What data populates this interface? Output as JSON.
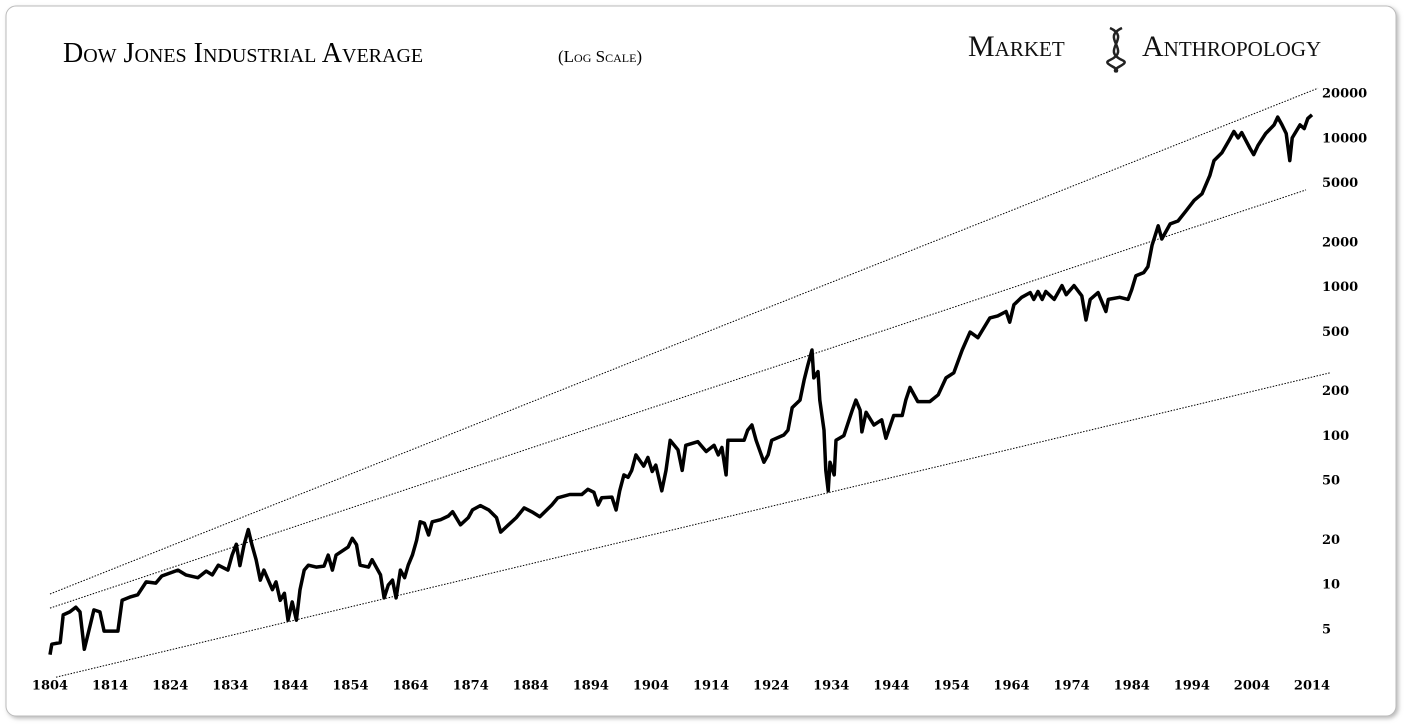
{
  "chart_data": {
    "type": "line",
    "title": "Dow Jones Industrial Average",
    "subtitle": "(Log Scale)",
    "brand": [
      "Market",
      "Anthropology"
    ],
    "log_scale": true,
    "color": "#000000",
    "xlim": [
      1804,
      2014
    ],
    "ylim": [
      2,
      25000
    ],
    "xticks": [
      1804,
      1814,
      1824,
      1834,
      1844,
      1854,
      1864,
      1874,
      1884,
      1894,
      1904,
      1914,
      1924,
      1934,
      1944,
      1954,
      1964,
      1974,
      1984,
      1994,
      2004,
      2014
    ],
    "yticks": [
      5,
      10,
      20,
      50,
      100,
      200,
      500,
      1000,
      2000,
      5000,
      10000,
      20000
    ],
    "x": [
      1804,
      1804.3,
      1805.7,
      1806.2,
      1807.3,
      1808.3,
      1809,
      1809.7,
      1810.7,
      1811.3,
      1812.3,
      1813,
      1815.3,
      1816,
      1817.3,
      1818.6,
      1820,
      1821.6,
      1822.6,
      1825.3,
      1826.6,
      1828.6,
      1830,
      1831,
      1832,
      1833.6,
      1834.3,
      1835,
      1835.6,
      1836.3,
      1837,
      1837.6,
      1838.3,
      1839,
      1839.6,
      1841,
      1841.6,
      1842.3,
      1843,
      1843.6,
      1844.3,
      1845,
      1845.6,
      1846.3,
      1847,
      1848.3,
      1849.6,
      1850.3,
      1851,
      1851.6,
      1853.6,
      1854.3,
      1855,
      1855.6,
      1857,
      1857.6,
      1859,
      1859.6,
      1860.3,
      1861,
      1861.6,
      1862.3,
      1863,
      1863.6,
      1864.3,
      1865,
      1865.6,
      1866.3,
      1867,
      1867.6,
      1869,
      1870.3,
      1871,
      1872.3,
      1873.6,
      1874.3,
      1875.6,
      1877,
      1878.3,
      1879,
      1880.3,
      1881.6,
      1882.9,
      1884.2,
      1885.5,
      1887.5,
      1888.5,
      1890.5,
      1892.5,
      1893.5,
      1894.5,
      1895.2,
      1895.8,
      1897.5,
      1898.2,
      1898.8,
      1899.5,
      1900.2,
      1900.8,
      1901.5,
      1902.8,
      1903.5,
      1904.2,
      1904.8,
      1905.8,
      1906.5,
      1907.2,
      1908.5,
      1909.2,
      1909.8,
      1911.8,
      1913.2,
      1914.5,
      1915.2,
      1915.8,
      1916.5,
      1916.8,
      1919.5,
      1920.1,
      1920.8,
      1921.5,
      1922.8,
      1923.5,
      1924.1,
      1926.1,
      1926.8,
      1927.5,
      1928.8,
      1929.5,
      1930.1,
      1930.8,
      1931.1,
      1931.8,
      1932.1,
      1932.8,
      1933.1,
      1933.5,
      1933.8,
      1934.5,
      1934.8,
      1936.1,
      1937.5,
      1938.1,
      1938.8,
      1939.1,
      1939.8,
      1941.1,
      1942.4,
      1943.1,
      1944.4,
      1945.8,
      1946.4,
      1947.1,
      1948.4,
      1950.4,
      1951.8,
      1953.1,
      1954.4,
      1955.8,
      1957.1,
      1958.4,
      1960.4,
      1961.7,
      1963.1,
      1963.7,
      1964.4,
      1965.7,
      1967.1,
      1967.7,
      1968.4,
      1969.1,
      1969.7,
      1971.1,
      1972.4,
      1973.1,
      1974.4,
      1975.7,
      1976.4,
      1977.1,
      1978.4,
      1979.7,
      1980.1,
      1982,
      1983.4,
      1984,
      1984.7,
      1986,
      1986.7,
      1987.4,
      1988.4,
      1989,
      1990.4,
      1991.7,
      1993,
      1994.4,
      1995.7,
      1997,
      1997.7,
      1999,
      2000.3,
      2001,
      2001.7,
      2002.3,
      2003.7,
      2004.3,
      2005,
      2006.3,
      2007.7,
      2008.3,
      2009,
      2009.7,
      2010.3,
      2010.7,
      2012,
      2012.7,
      2013.3,
      2014
    ],
    "values": [
      3.4,
      4.0,
      4.1,
      6.3,
      6.6,
      7.1,
      6.6,
      3.7,
      5.4,
      6.8,
      6.6,
      4.9,
      4.9,
      7.9,
      8.3,
      8.6,
      10.5,
      10.3,
      11.5,
      12.6,
      11.7,
      11.2,
      12.4,
      11.7,
      13.6,
      12.6,
      15.9,
      18.8,
      13.5,
      18.7,
      23.6,
      18.7,
      14.8,
      10.8,
      12.6,
      9.3,
      10.5,
      7.9,
      8.8,
      5.8,
      7.7,
      5.8,
      9.3,
      12.6,
      13.6,
      13.2,
      13.4,
      15.9,
      12.6,
      15.9,
      18,
      20.6,
      18.7,
      13.6,
      13.2,
      14.8,
      11.7,
      8.2,
      10,
      10.8,
      8.2,
      12.6,
      11.2,
      13.6,
      15.9,
      20,
      26.6,
      26,
      21.7,
      26.6,
      27.5,
      29.1,
      31.1,
      25.4,
      28.4,
      32,
      34.2,
      32,
      28.4,
      22.7,
      25.4,
      28.4,
      33,
      31,
      28.8,
      34.5,
      38.6,
      40.6,
      40.6,
      44,
      42,
      34.5,
      38.6,
      39,
      32,
      43,
      55,
      53,
      59,
      75,
      63,
      72,
      58,
      64,
      43,
      59,
      94,
      81,
      59,
      87,
      92,
      79,
      87,
      75,
      84,
      55,
      94,
      94,
      110,
      119,
      94,
      67,
      75,
      94,
      102,
      110,
      156,
      175,
      240,
      300,
      380,
      247,
      272,
      175,
      110,
      59,
      43,
      67,
      55,
      94,
      101,
      150,
      175,
      150,
      107,
      145,
      119,
      129,
      97,
      138,
      138,
      175,
      213,
      171,
      171,
      190,
      247,
      267,
      380,
      502,
      460,
      625,
      645,
      690,
      585,
      765,
      860,
      925,
      832,
      940,
      832,
      940,
      832,
      1030,
      895,
      1030,
      880,
      605,
      832,
      925,
      690,
      832,
      860,
      832,
      965,
      1200,
      1260,
      1380,
      1930,
      2600,
      2120,
      2680,
      2800,
      3260,
      3860,
      4270,
      5660,
      7140,
      8050,
      9940,
      11200,
      10140,
      11000,
      8600,
      7830,
      9000,
      10860,
      12400,
      14000,
      12400,
      10860,
      7140,
      10140,
      12400,
      11700,
      13700,
      14500
    ],
    "trend_lines": [
      {
        "x": [
          1804,
          2015
        ],
        "values": [
          8.7,
          21900
        ]
      },
      {
        "x": [
          1804,
          2013
        ],
        "values": [
          7.0,
          4530
        ]
      },
      {
        "x": [
          1805,
          2017
        ],
        "values": [
          2.4,
          267
        ]
      }
    ]
  }
}
